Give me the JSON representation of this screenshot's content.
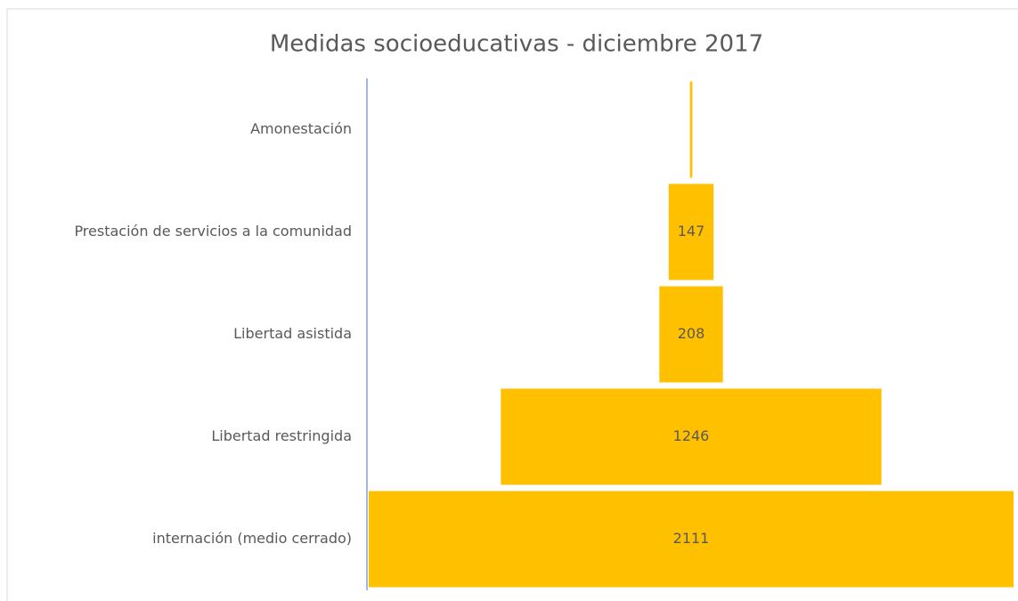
{
  "chart_data": {
    "type": "funnel",
    "title": "Medidas socioeducativas - diciembre 2017",
    "categories": [
      "Amonestación",
      "Prestación de servicios a la comunidad",
      "Libertad asistida",
      "Libertad restringida",
      "internación (medio cerrado)"
    ],
    "values": [
      8,
      147,
      208,
      1246,
      2111
    ],
    "color": "#ffc000"
  }
}
